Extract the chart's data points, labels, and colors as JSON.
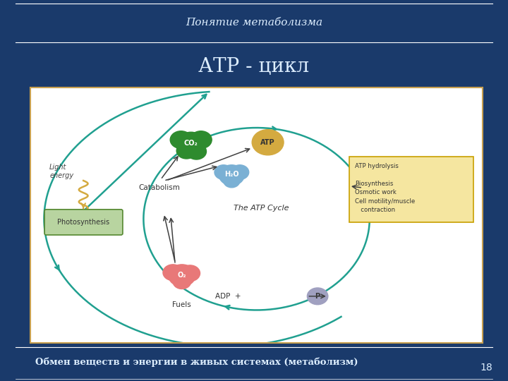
{
  "bg_color": "#1a3a6b",
  "slide_title": "Понятие метаболизма",
  "main_title": "АТР - цикл",
  "footer_text": "Обмен веществ и энергии в живых системах (метаболизм)",
  "page_number": "18",
  "diagram_bg": "#ffffff",
  "diagram_border": "#c8a050",
  "title_color": "#ddeeff",
  "footer_color": "#ddeeff",
  "slide_title_color": "#ddeeff",
  "atp_box_color": "#f5e6a0",
  "atp_box_border": "#c8a000",
  "photosynthesis_box_color": "#b8d4a0",
  "photosynthesis_box_border": "#558830",
  "co2_color": "#2e8b2e",
  "h2o_color": "#7ab0d4",
  "o2_color": "#e87878",
  "atp_circle_color": "#d4aa40",
  "p_circle_color": "#a0a0c0",
  "p_circle_border": "#7070a0",
  "circle_color": "#20a090",
  "light_energy_color": "#d4aa40",
  "arrow_dark": "#404040"
}
